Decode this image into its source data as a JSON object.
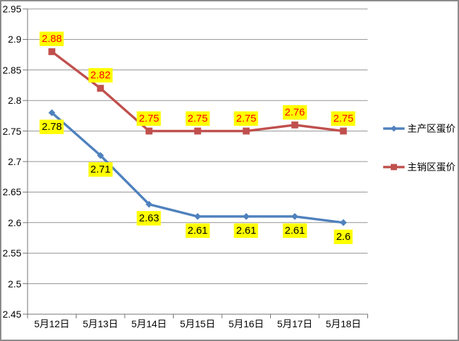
{
  "chart_data": {
    "type": "line",
    "categories": [
      "5月12日",
      "5月13日",
      "5月14日",
      "5月15日",
      "5月16日",
      "5月17日",
      "5月18日"
    ],
    "series": [
      {
        "name": "主产区蛋价",
        "values": [
          2.78,
          2.71,
          2.63,
          2.61,
          2.61,
          2.61,
          2.6
        ],
        "labels": [
          "2.78",
          "2.71",
          "2.63",
          "2.61",
          "2.61",
          "2.61",
          "2.6"
        ],
        "color": "#4F81BD",
        "marker": "diamond",
        "label_position": "below",
        "label_color": "#000000"
      },
      {
        "name": "主销区蛋价",
        "values": [
          2.88,
          2.82,
          2.75,
          2.75,
          2.75,
          2.76,
          2.75
        ],
        "labels": [
          "2.88",
          "2.82",
          "2.75",
          "2.75",
          "2.75",
          "2.76",
          "2.75"
        ],
        "color": "#C0504D",
        "marker": "square",
        "label_position": "above",
        "label_color": "#FF0000"
      }
    ],
    "ylim": [
      2.45,
      2.95
    ],
    "ytick_labels": [
      "2.95",
      "2.9",
      "2.85",
      "2.8",
      "2.75",
      "2.7",
      "2.65",
      "2.6",
      "2.55",
      "2.5",
      "2.45"
    ],
    "grid": true,
    "legend_position": "right",
    "data_label_bg": "#FFFF00"
  },
  "colors": {
    "background": "#FFFFFF",
    "border": "#8A8A8A",
    "gridline": "#909090",
    "axis": "#707070",
    "tick_text": "#000000"
  }
}
